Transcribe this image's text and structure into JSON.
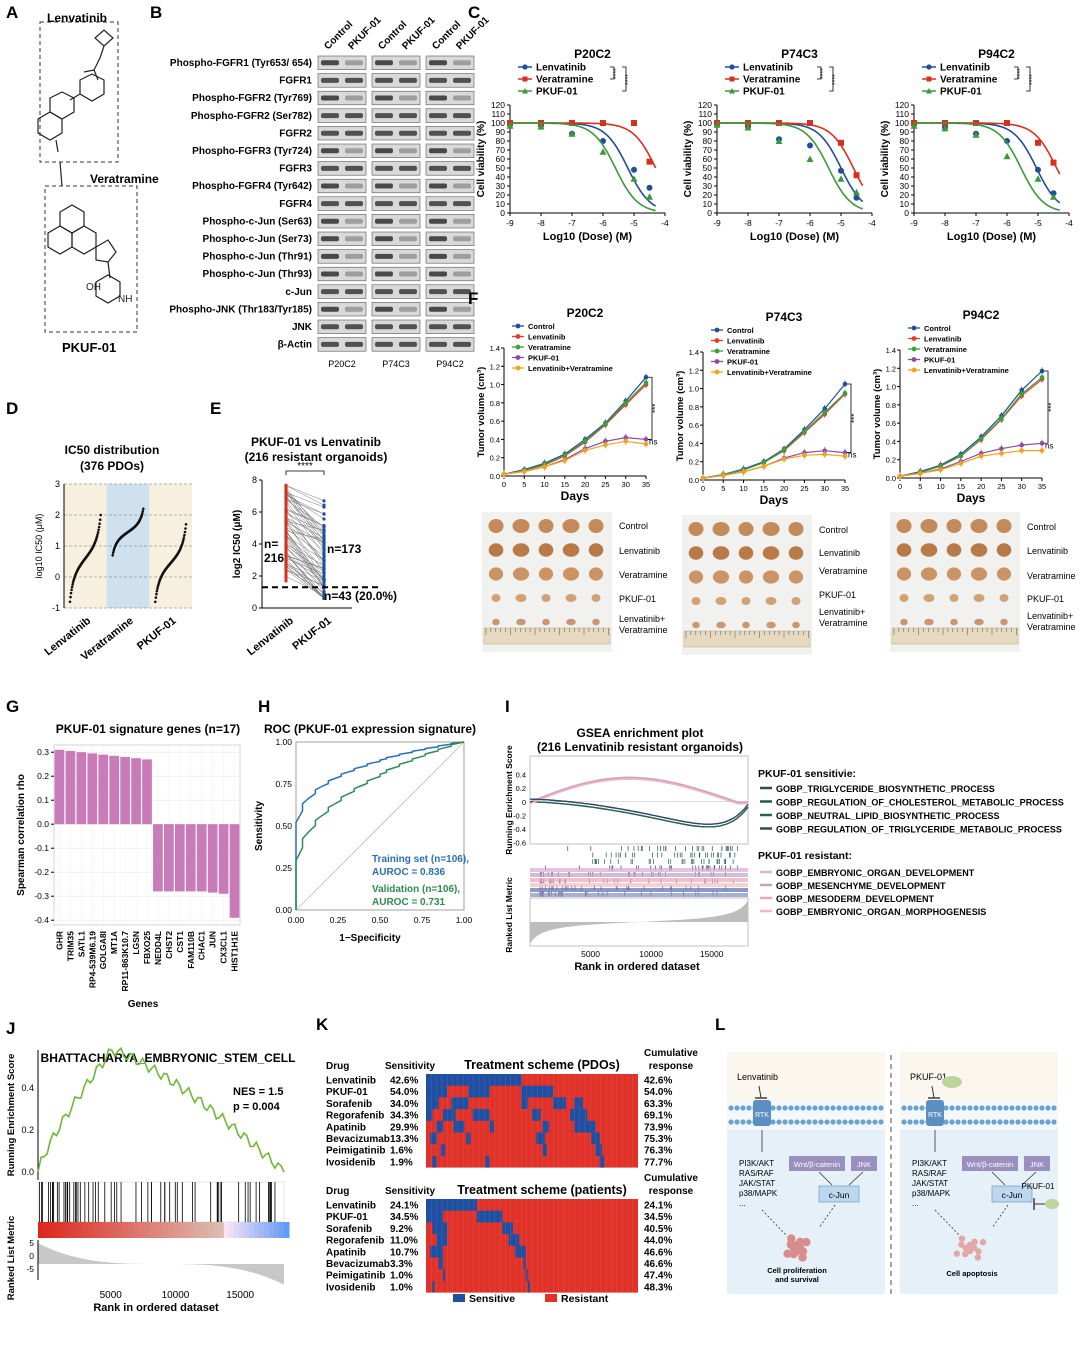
{
  "panels": [
    "A",
    "B",
    "C",
    "D",
    "E",
    "F",
    "G",
    "H",
    "I",
    "J",
    "K",
    "L"
  ],
  "panel_a": {
    "top_label": "Lenvatinib",
    "mid_label": "Veratramine",
    "bottom_label": "PKUF-01"
  },
  "panel_b": {
    "col_labels": [
      "Control",
      "PKUF-01",
      "Control",
      "PKUF-01",
      "Control",
      "PKUF-01"
    ],
    "rows": [
      "Phospho-FGFR1 (Tyr653/ 654)",
      "FGFR1",
      "Phospho-FGFR2 (Tyr769)",
      "Phospho-FGFR2 (Ser782)",
      "FGFR2",
      "Phospho-FGFR3 (Tyr724)",
      "FGFR3",
      "Phospho-FGFR4 (Tyr642)",
      "FGFR4",
      "Phospho-c-Jun (Ser63)",
      "Phospho-c-Jun (Ser73)",
      "Phospho-c-Jun (Thr91)",
      "Phospho-c-Jun (Thr93)",
      "c-Jun",
      "Phospho-JNK (Thr183/Tyr185)",
      "JNK",
      "β-Actin"
    ],
    "groups": [
      "P20C2",
      "P74C3",
      "P94C2"
    ]
  },
  "panel_c": {
    "ylabel": "Cell viability (%)",
    "xlabel": "Log10 (Dose) (M)",
    "stars": "****"
  },
  "panel_f": {
    "ylabel": "Tumor volume (cm³)",
    "xlabel": "Days",
    "sig": "***",
    "ns": "ns",
    "photo_labels": [
      "Control",
      "Lenvatinib",
      "Veratramine",
      "PKUF-01",
      "Lenvatinib+\nVeratramine"
    ]
  },
  "panel_h": {
    "legend1": "Training set (n=106),",
    "legend1b": "AUROC = 0.836",
    "legend2": "Validation (n=106),",
    "legend2b": "AUROC = 0.731"
  },
  "panel_i": {
    "title1": "GSEA enrichment plot",
    "title2": "(216 Lenvatinib resistant organoids)",
    "ylabel_top": "Running Enrichment Score",
    "ylabel_bot": "Ranked List Metric",
    "xlabel": "Rank in ordered dataset",
    "sens_title": "PKUF-01 sensitivie:",
    "res_title": "PKUF-01 resistant:",
    "sens_sets": [
      "GOBP_TRIGLYCERIDE_BIOSYNTHETIC_PROCESS",
      "GOBP_REGULATION_OF_CHOLESTEROL_METABOLIC_PROCESS",
      "GOBP_NEUTRAL_LIPID_BIOSYNTHETIC_PROCESS",
      "GOBP_REGULATION_OF_TRIGLYCERIDE_METABOLIC_PROCESS"
    ],
    "res_sets": [
      "GOBP_EMBRYONIC_ORGAN_DEVELOPMENT",
      "GOBP_MESENCHYME_DEVELOPMENT",
      "GOBP_MESODERM_DEVELOPMENT",
      "GOBP_EMBRYONIC_ORGAN_MORPHOGENESIS"
    ],
    "xticks": [
      "5000",
      "10000",
      "15000"
    ]
  },
  "panel_j": {
    "title": "BHATTACHARYA_EMBRYONIC_STEM_CELL",
    "nes": "NES = 1.5",
    "p": "p = 0.004",
    "ylabel_top": "Running Enrichment Score",
    "ylabel_bot": "Ranked List Metric",
    "xlabel": "Rank in ordered dataset"
  },
  "panel_k": {
    "drug_hdr": "Drug",
    "sens_hdr": "Sensitivity",
    "cum_hdr1": "Cumulative",
    "cum_hdr2": "response",
    "title_pdo": "Treatment scheme (PDOs)",
    "title_pat": "Treatment scheme (patients)",
    "drugs": [
      "Lenvatinib",
      "PKUF-01",
      "Sorafenib",
      "Regorafenib",
      "Apatinib",
      "Bevacizumab",
      "Peimigatinib",
      "Ivosidenib"
    ],
    "sens_pdo": [
      "42.6%",
      "54.0%",
      "34.0%",
      "34.3%",
      "29.9%",
      "13.3%",
      "1.6%",
      "1.9%"
    ],
    "cum_pdo": [
      "42.6%",
      "54.0%",
      "63.3%",
      "69.1%",
      "73.9%",
      "75.3%",
      "76.3%",
      "77.7%"
    ],
    "sens_pat": [
      "24.1%",
      "34.5%",
      "9.2%",
      "11.0%",
      "10.7%",
      "3.3%",
      "1.0%",
      "1.0%"
    ],
    "cum_pat": [
      "24.1%",
      "34.5%",
      "40.5%",
      "44.0%",
      "46.6%",
      "46.6%",
      "47.4%",
      "48.3%"
    ],
    "legend_s": "Sensitive",
    "legend_r": "Resistant"
  },
  "panel_l": {
    "left_drug": "Lenvatinib",
    "right_drug": "PKUF-01",
    "rtk": "RTK",
    "pathways": [
      "PI3K/AKT",
      "RAS/RAF",
      "JAK/STAT",
      "p38/MAPK",
      "..."
    ],
    "wnt": "Wnt/β-catenin",
    "jnk": "JNK",
    "cjun": "c-Jun",
    "out_left1": "Cell proliferation",
    "out_left2": "and survival",
    "out_right": "Cell apoptosis",
    "pkuf_inh": "PKUF-01"
  },
  "colors": {
    "blue": "#1f4e9a",
    "red": "#d7301f",
    "green": "#3a9a3a",
    "pink": "#c97bb9",
    "sens": "#1f4fa3",
    "res": "#e03228"
  },
  "chart_data": [
    {
      "type": "line",
      "panel": "C",
      "title": "P20C2",
      "xlabel": "Log10 (Dose) (M)",
      "ylabel": "Cell viability (%)",
      "xlim": [
        -9,
        -4
      ],
      "ylim": [
        0,
        120
      ],
      "series": [
        {
          "name": "Lenvatinib",
          "x": [
            -9,
            -8,
            -7,
            -6,
            -5,
            -4.5
          ],
          "y": [
            98,
            97,
            88,
            80,
            48,
            28
          ]
        },
        {
          "name": "Veratramine",
          "x": [
            -9,
            -8,
            -7,
            -6,
            -5,
            -4.5
          ],
          "y": [
            100,
            100,
            100,
            100,
            100,
            57
          ]
        },
        {
          "name": "PKUF-01",
          "x": [
            -9,
            -8,
            -7,
            -6,
            -5,
            -4.5
          ],
          "y": [
            97,
            96,
            88,
            68,
            38,
            18
          ]
        }
      ]
    },
    {
      "type": "line",
      "panel": "C",
      "title": "P74C3",
      "xlabel": "Log10 (Dose) (M)",
      "ylabel": "Cell viability (%)",
      "xlim": [
        -9,
        -4
      ],
      "ylim": [
        0,
        120
      ],
      "series": [
        {
          "name": "Lenvatinib",
          "x": [
            -9,
            -8,
            -7,
            -6,
            -5,
            -4.5
          ],
          "y": [
            99,
            96,
            82,
            75,
            47,
            17
          ]
        },
        {
          "name": "Veratramine",
          "x": [
            -9,
            -8,
            -7,
            -6,
            -5,
            -4.5
          ],
          "y": [
            100,
            100,
            100,
            100,
            78,
            42
          ]
        },
        {
          "name": "PKUF-01",
          "x": [
            -9,
            -8,
            -7,
            -6,
            -5,
            -4.5
          ],
          "y": [
            98,
            95,
            80,
            60,
            38,
            23
          ]
        }
      ]
    },
    {
      "type": "line",
      "panel": "C",
      "title": "P94C2",
      "xlabel": "Log10 (Dose) (M)",
      "ylabel": "Cell viability (%)",
      "xlim": [
        -9,
        -4
      ],
      "ylim": [
        0,
        120
      ],
      "series": [
        {
          "name": "Lenvatinib",
          "x": [
            -9,
            -8,
            -7,
            -6,
            -5,
            -4.5
          ],
          "y": [
            99,
            95,
            88,
            80,
            48,
            22
          ]
        },
        {
          "name": "Veratramine",
          "x": [
            -9,
            -8,
            -7,
            -6,
            -5,
            -4.5
          ],
          "y": [
            100,
            100,
            100,
            100,
            78,
            56
          ]
        },
        {
          "name": "PKUF-01",
          "x": [
            -9,
            -8,
            -7,
            -6,
            -5,
            -4.5
          ],
          "y": [
            97,
            94,
            87,
            63,
            38,
            18
          ]
        }
      ]
    },
    {
      "type": "line",
      "panel": "F",
      "title": "P20C2",
      "xlabel": "Days",
      "ylabel": "Tumor volume (cm³)",
      "xlim": [
        0,
        35
      ],
      "ylim": [
        0,
        1.4
      ],
      "x": [
        0,
        5,
        10,
        15,
        20,
        25,
        30,
        35
      ],
      "series": [
        {
          "name": "Control",
          "values": [
            0.02,
            0.07,
            0.14,
            0.24,
            0.4,
            0.58,
            0.82,
            1.08
          ]
        },
        {
          "name": "Lenvatinib",
          "values": [
            0.02,
            0.06,
            0.12,
            0.22,
            0.37,
            0.56,
            0.78,
            1.0
          ]
        },
        {
          "name": "Veratramine",
          "values": [
            0.02,
            0.06,
            0.13,
            0.23,
            0.38,
            0.57,
            0.8,
            1.02
          ]
        },
        {
          "name": "PKUF-01",
          "values": [
            0.02,
            0.05,
            0.1,
            0.18,
            0.3,
            0.38,
            0.42,
            0.4
          ]
        },
        {
          "name": "Lenvatinib+Veratramine",
          "values": [
            0.02,
            0.05,
            0.1,
            0.17,
            0.28,
            0.34,
            0.38,
            0.35
          ]
        }
      ]
    },
    {
      "type": "line",
      "panel": "F",
      "title": "P74C3",
      "xlabel": "Days",
      "ylabel": "Tumor volume (cm³)",
      "xlim": [
        0,
        35
      ],
      "ylim": [
        0,
        1.4
      ],
      "x": [
        0,
        5,
        10,
        15,
        20,
        25,
        30,
        35
      ],
      "series": [
        {
          "name": "Control",
          "values": [
            0.02,
            0.06,
            0.12,
            0.2,
            0.34,
            0.55,
            0.78,
            1.05
          ]
        },
        {
          "name": "Lenvatinib",
          "values": [
            0.02,
            0.06,
            0.11,
            0.19,
            0.32,
            0.52,
            0.72,
            0.94
          ]
        },
        {
          "name": "Veratramine",
          "values": [
            0.02,
            0.06,
            0.11,
            0.19,
            0.33,
            0.53,
            0.74,
            0.95
          ]
        },
        {
          "name": "PKUF-01",
          "values": [
            0.02,
            0.05,
            0.09,
            0.15,
            0.24,
            0.3,
            0.32,
            0.3
          ]
        },
        {
          "name": "Lenvatinib+Veratramine",
          "values": [
            0.02,
            0.05,
            0.09,
            0.15,
            0.23,
            0.27,
            0.28,
            0.26
          ]
        }
      ]
    },
    {
      "type": "line",
      "panel": "F",
      "title": "P94C2",
      "xlabel": "Days",
      "ylabel": "Tumor volume (cm³)",
      "xlim": [
        0,
        35
      ],
      "ylim": [
        0,
        1.4
      ],
      "x": [
        0,
        5,
        10,
        15,
        20,
        25,
        30,
        35
      ],
      "series": [
        {
          "name": "Control",
          "values": [
            0.02,
            0.07,
            0.14,
            0.26,
            0.45,
            0.68,
            0.96,
            1.17
          ]
        },
        {
          "name": "Lenvatinib",
          "values": [
            0.02,
            0.06,
            0.13,
            0.24,
            0.42,
            0.64,
            0.9,
            1.08
          ]
        },
        {
          "name": "Veratramine",
          "values": [
            0.02,
            0.06,
            0.13,
            0.24,
            0.43,
            0.65,
            0.92,
            1.1
          ]
        },
        {
          "name": "PKUF-01",
          "values": [
            0.02,
            0.05,
            0.1,
            0.18,
            0.27,
            0.32,
            0.36,
            0.38
          ]
        },
        {
          "name": "Lenvatinib+Veratramine",
          "values": [
            0.02,
            0.05,
            0.09,
            0.16,
            0.24,
            0.27,
            0.3,
            0.3
          ]
        }
      ]
    },
    {
      "type": "scatter",
      "panel": "D",
      "title": "IC50 distribution",
      "subtitle": "(376 PDOs)",
      "ylabel": "log10 IC50 (μM)",
      "ylim": [
        -1,
        3
      ],
      "categories": [
        "Lenvatinib",
        "Veratramine",
        "PKUF-01"
      ],
      "ranges": [
        [
          -0.8,
          2.0
        ],
        [
          0.7,
          2.2
        ],
        [
          -0.8,
          1.7
        ]
      ]
    },
    {
      "type": "scatter",
      "panel": "E",
      "title": "PKUF-01 vs Lenvatinib",
      "subtitle": "(216 resistant organoids)",
      "ylabel": "log2 IC50 (μM)",
      "ylim": [
        0,
        8
      ],
      "categories": [
        "Lenvatinib",
        "PKUF-01"
      ],
      "threshold": 1.3,
      "stars": "****",
      "annotations": [
        "n=\n216",
        "n=173",
        "n=43 (20.0%)"
      ]
    },
    {
      "type": "bar",
      "panel": "G",
      "title": "PKUF-01 signature genes (n=17)",
      "xlabel": "Genes",
      "ylabel": "Spearman correlation rho",
      "ylim": [
        -0.4,
        0.3
      ],
      "categories": [
        "GHR",
        "TRIM35",
        "SATL1",
        "RP4-539M6.19",
        "GOLGA8I",
        "MT1A",
        "RP11-863K10.7",
        "LGSN",
        "FBXO25",
        "NEDD4L",
        "CHST2",
        "CST1",
        "FAM110B",
        "CHAC1",
        "JUN",
        "CX3CL1",
        "HIST1H1E"
      ],
      "values": [
        0.31,
        0.305,
        0.3,
        0.295,
        0.29,
        0.285,
        0.28,
        0.275,
        0.27,
        -0.28,
        -0.28,
        -0.28,
        -0.28,
        -0.28,
        -0.285,
        -0.29,
        -0.39
      ]
    },
    {
      "type": "line",
      "panel": "H",
      "title": "ROC (PKUF-01 expression signature)",
      "xlabel": "1−Specificity",
      "ylabel": "Sensitivity",
      "xlim": [
        0,
        1
      ],
      "ylim": [
        0,
        1
      ],
      "series": [
        {
          "name": "Training set",
          "auc": 0.836
        },
        {
          "name": "Validation",
          "auc": 0.731
        }
      ]
    }
  ]
}
